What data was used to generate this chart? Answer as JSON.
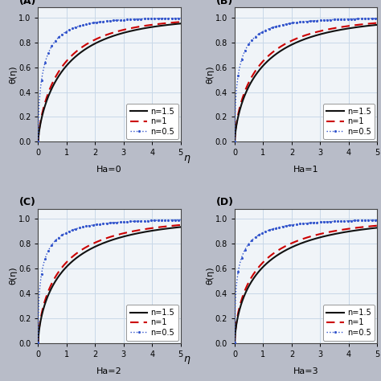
{
  "panels": [
    "(A)",
    "(B)",
    "(C)",
    "(D)"
  ],
  "ha_labels": [
    "Ha=0",
    "Ha=1",
    "Ha=2",
    "Ha=3"
  ],
  "ylabel": "θ(η)",
  "xlabel": "η",
  "xlim": [
    0,
    5
  ],
  "ylim": [
    0.0,
    1.08
  ],
  "yticks": [
    0.0,
    0.2,
    0.4,
    0.6,
    0.8,
    1.0
  ],
  "xticks": [
    0,
    1,
    2,
    3,
    4,
    5
  ],
  "legend_labels": [
    "n=1.5",
    "n=1",
    "n=0.5"
  ],
  "line_colors": [
    "#111111",
    "#cc0000",
    "#3355cc"
  ],
  "bg_color": "#f0f4f8",
  "grid_color": "#c8d8e8",
  "outer_bg": "#b8bcc8",
  "panel_fontsize": 9,
  "axis_fontsize": 8,
  "tick_fontsize": 7,
  "legend_fontsize": 7,
  "panel_params": [
    {
      "scales": [
        0.95,
        1.05,
        2.2
      ],
      "powers": [
        0.72,
        0.72,
        0.55
      ]
    },
    {
      "scales": [
        0.95,
        1.05,
        2.2
      ],
      "powers": [
        0.68,
        0.68,
        0.5
      ]
    },
    {
      "scales": [
        0.95,
        1.05,
        2.2
      ],
      "powers": [
        0.65,
        0.65,
        0.47
      ]
    },
    {
      "scales": [
        0.95,
        1.05,
        2.2
      ],
      "powers": [
        0.63,
        0.63,
        0.45
      ]
    }
  ]
}
